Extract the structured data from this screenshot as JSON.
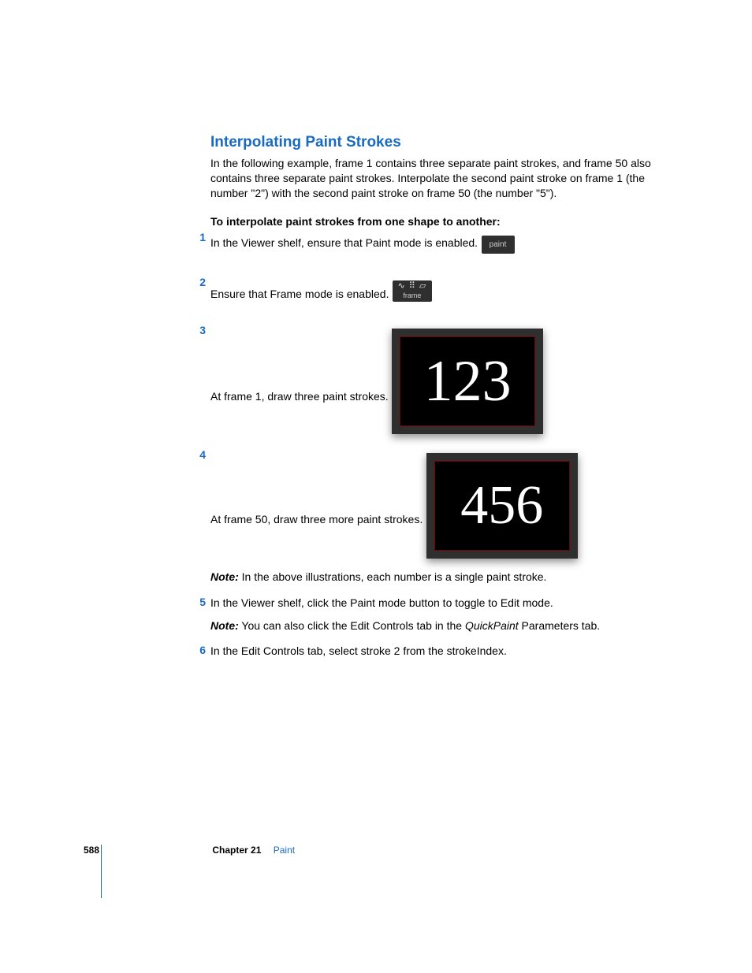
{
  "section": {
    "title": "Interpolating Paint Strokes",
    "intro": "In the following example, frame 1 contains three separate paint strokes, and frame 50 also contains three separate paint strokes. Interpolate the second paint stroke on frame 1 (the number \"2\") with the second paint stroke on frame 50 (the number \"5\").",
    "subhead": "To interpolate paint strokes from one shape to another:"
  },
  "steps": {
    "s1": {
      "num": "1",
      "text": "In the Viewer shelf, ensure that Paint mode is enabled."
    },
    "s2": {
      "num": "2",
      "text": "Ensure that Frame mode is enabled."
    },
    "s3": {
      "num": "3",
      "text": "At frame 1, draw three paint strokes."
    },
    "s4": {
      "num": "4",
      "text": "At frame 50, draw three more paint strokes.",
      "note_label": "Note:",
      "note_text": "  In the above illustrations, each number is a single paint stroke."
    },
    "s5": {
      "num": "5",
      "text": "In the Viewer shelf, click the Paint mode button to toggle to Edit mode.",
      "note_label": "Note:",
      "note_text_pre": "  You can also click the Edit Controls tab in the ",
      "note_text_em": "QuickPaint",
      "note_text_post": " Parameters tab."
    },
    "s6": {
      "num": "6",
      "text": "In the Edit Controls tab, select stroke 2 from the strokeIndex."
    }
  },
  "buttons": {
    "paint_label": "paint",
    "frame_icons": "∿ ⠿ ▱",
    "frame_label": "frame"
  },
  "figures": {
    "fig1_text": "123",
    "fig2_text": "456",
    "frame_border_color": "#2f2f2f",
    "canvas_bg": "#000000",
    "canvas_border": "#7a0000",
    "stroke_color": "#ffffff"
  },
  "footer": {
    "page": "588",
    "chapter": "Chapter 21",
    "name": "Paint"
  },
  "colors": {
    "heading": "#1a6bbf",
    "body": "#000000"
  }
}
